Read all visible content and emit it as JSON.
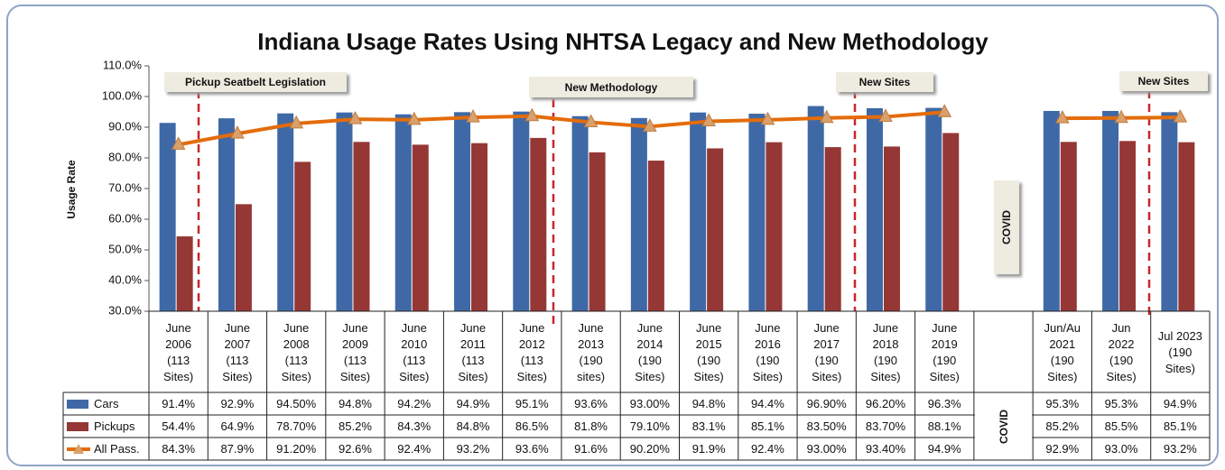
{
  "chart_data": {
    "type": "bar",
    "title": "Indiana Usage Rates Using NHTSA Legacy and New Methodology",
    "y_label": "Usage Rate",
    "categories": [
      "June\n2006\n(113\nSites)",
      "June\n2007\n(113\nSites)",
      "June\n2008\n(113\nSites)",
      "June\n2009\n(113\nSites)",
      "June\n2010\n(113\nSites)",
      "June\n2011\n(113\nSites)",
      "June\n2012\n(113\nSites)",
      "June\n2013\n(190\nsites)",
      "June\n2014\n(190\nSites)",
      "June\n2015\n(190\nSites)",
      "June\n2016\n(190\nSites)",
      "June\n2017\n(190\nSites)",
      "June\n2018\n(190\nSites)",
      "June\n2019\n(190\nSites)",
      null,
      "Jun/Au\n2021\n(190\nSites)",
      "Jun\n2022\n(190\nSites)",
      "Jul 2023\n(190\nSites)"
    ],
    "series": [
      {
        "name": "Cars",
        "color": "#3f69a6",
        "type": "bar",
        "values": [
          91.4,
          92.9,
          94.5,
          94.8,
          94.2,
          94.9,
          95.1,
          93.6,
          93.0,
          94.8,
          94.4,
          96.9,
          96.2,
          96.3,
          null,
          95.3,
          95.3,
          94.9
        ],
        "value_labels": [
          "91.4%",
          "92.9%",
          "94.50%",
          "94.8%",
          "94.2%",
          "94.9%",
          "95.1%",
          "93.6%",
          "93.00%",
          "94.8%",
          "94.4%",
          "96.90%",
          "96.20%",
          "96.3%",
          null,
          "95.3%",
          "95.3%",
          "94.9%"
        ]
      },
      {
        "name": "Pickups",
        "color": "#953735",
        "type": "bar",
        "values": [
          54.4,
          64.9,
          78.7,
          85.2,
          84.3,
          84.8,
          86.5,
          81.8,
          79.1,
          83.1,
          85.1,
          83.5,
          83.7,
          88.1,
          null,
          85.2,
          85.5,
          85.1
        ],
        "value_labels": [
          "54.4%",
          "64.9%",
          "78.70%",
          "85.2%",
          "84.3%",
          "84.8%",
          "86.5%",
          "81.8%",
          "79.10%",
          "83.1%",
          "85.1%",
          "83.50%",
          "83.70%",
          "88.1%",
          null,
          "85.2%",
          "85.5%",
          "85.1%"
        ]
      },
      {
        "name": "All Pass.",
        "color": "#e46c0a",
        "marker_color": "#d9a06a",
        "type": "line",
        "values": [
          84.3,
          87.9,
          91.2,
          92.6,
          92.4,
          93.2,
          93.6,
          91.6,
          90.2,
          91.9,
          92.4,
          93.0,
          93.4,
          94.9,
          null,
          92.9,
          93.0,
          93.2
        ],
        "value_labels": [
          "84.3%",
          "87.9%",
          "91.20%",
          "92.6%",
          "92.4%",
          "93.2%",
          "93.6%",
          "91.6%",
          "90.20%",
          "91.9%",
          "92.4%",
          "93.00%",
          "93.40%",
          "94.9%",
          null,
          "92.9%",
          "93.0%",
          "93.2%"
        ]
      }
    ],
    "ylim": [
      30,
      110
    ],
    "yticks": [
      {
        "value": 30,
        "label": "30.0%"
      },
      {
        "value": 40,
        "label": "40.0%"
      },
      {
        "value": 50,
        "label": "50.0%"
      },
      {
        "value": 60,
        "label": "60.0%"
      },
      {
        "value": 70,
        "label": "70.0%"
      },
      {
        "value": 80,
        "label": "80.0%"
      },
      {
        "value": 90,
        "label": "90.0%"
      },
      {
        "value": 100,
        "label": "100.0%"
      },
      {
        "value": 110,
        "label": "110.0%"
      }
    ],
    "grid": false,
    "annotations": [
      "Pickup Seatbelt Legislation",
      "New Methodology",
      "New Sites",
      "New Sites",
      "COVID",
      "COVID"
    ]
  }
}
